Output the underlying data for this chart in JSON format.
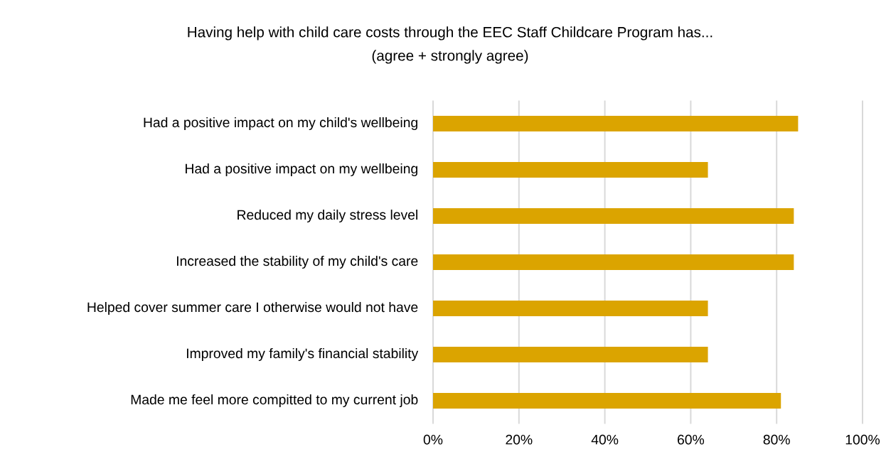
{
  "chart_data": {
    "type": "bar",
    "orientation": "horizontal",
    "title": "Having help with child care costs through the EEC Staff Childcare Program has...",
    "subtitle": "(agree + strongly agree)",
    "categories": [
      "Had a positive impact on my child's wellbeing",
      "Had a positive impact on my wellbeing",
      "Reduced my daily stress level",
      "Increased the stability of my child's care",
      "Helped cover summer care I otherwise would not have",
      "Improved my family's financial stability",
      "Made me feel more compitted to my current job"
    ],
    "values": [
      85,
      64,
      84,
      84,
      64,
      64,
      81
    ],
    "color": "#dba400",
    "xlim": [
      0,
      100
    ],
    "xticks": [
      {
        "value": 0,
        "label": "0%"
      },
      {
        "value": 20,
        "label": "20%"
      },
      {
        "value": 40,
        "label": "40%"
      },
      {
        "value": 60,
        "label": "60%"
      },
      {
        "value": 80,
        "label": "80%"
      },
      {
        "value": 100,
        "label": "100%"
      }
    ],
    "grid": "x"
  }
}
